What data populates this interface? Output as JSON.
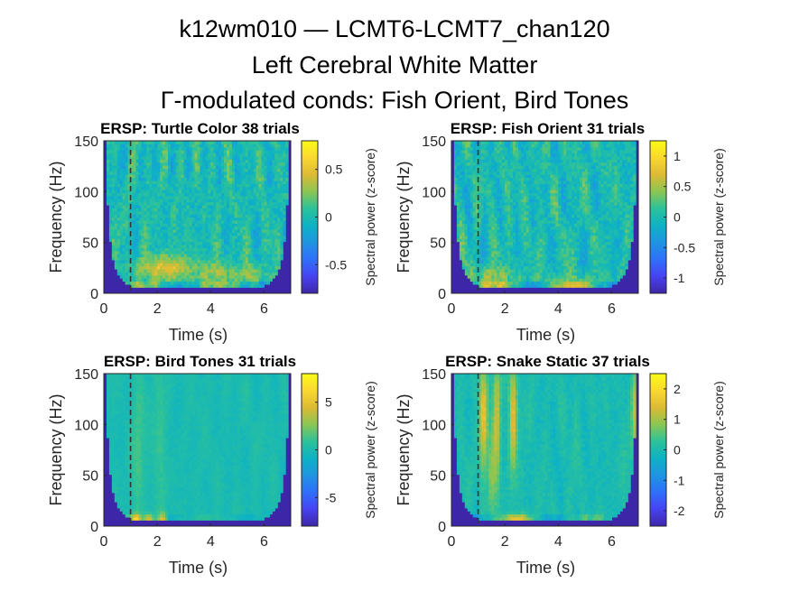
{
  "figure": {
    "title_lines": [
      "k12wm010 — LCMT6-LCMT7_chan120",
      "Left Cerebral White Matter",
      "Γ-modulated conds: Fish Orient, Bird Tones"
    ]
  },
  "colors": {
    "colormap": [
      "#3e26a8",
      "#4743f1",
      "#2f6ffb",
      "#1f95e2",
      "#0db2c5",
      "#2cc29a",
      "#8bc653",
      "#dcba34",
      "#fbd830",
      "#f9fb15"
    ],
    "masked_fill": "#3e26a8",
    "event_marker": "#333333",
    "axis": "#262626"
  },
  "chart_data": [
    {
      "type": "heatmap",
      "title": "ERSP: Turtle Color 38 trials",
      "xlabel": "Time (s)",
      "ylabel": "Frequency (Hz)",
      "xlim": [
        0,
        7
      ],
      "ylim": [
        0,
        150
      ],
      "xticks": [
        0,
        2,
        4,
        6
      ],
      "yticks": [
        0,
        50,
        100,
        150
      ],
      "event_time": 1,
      "colorbar": {
        "label": "Spectral power (z-score)",
        "range": [
          -0.8,
          0.8
        ],
        "ticks": [
          -0.5,
          0,
          0.5
        ],
        "tick_labels": [
          "-0.5",
          "0",
          "0.5"
        ]
      },
      "seed": 11,
      "texture_amp": 0.45,
      "hot_spots": [
        {
          "t": 2.3,
          "f": 25,
          "amp": 0.6,
          "st": 0.7,
          "sf": 9
        },
        {
          "t": 4.2,
          "f": 20,
          "amp": 0.35,
          "st": 0.5,
          "sf": 8
        },
        {
          "t": 5.5,
          "f": 18,
          "amp": 0.3,
          "st": 0.4,
          "sf": 8
        }
      ],
      "low_band": 0.45
    },
    {
      "type": "heatmap",
      "title": "ERSP: Fish Orient 31 trials",
      "xlabel": "Time (s)",
      "ylabel": "Frequency (Hz)",
      "xlim": [
        0,
        7
      ],
      "ylim": [
        0,
        150
      ],
      "xticks": [
        0,
        2,
        4,
        6
      ],
      "yticks": [
        0,
        50,
        100,
        150
      ],
      "event_time": 1,
      "colorbar": {
        "label": "Spectral power (z-score)",
        "range": [
          -1.25,
          1.25
        ],
        "ticks": [
          -1,
          -0.5,
          0,
          0.5,
          1
        ],
        "tick_labels": [
          "-1",
          "-0.5",
          "0",
          "0.5",
          "1"
        ]
      },
      "seed": 23,
      "texture_amp": 0.45,
      "hot_spots": [
        {
          "t": 1.5,
          "f": 15,
          "amp": 0.35,
          "st": 0.6,
          "sf": 8
        },
        {
          "t": 4.5,
          "f": 10,
          "amp": 0.3,
          "st": 0.8,
          "sf": 6
        }
      ],
      "low_band": 0.5
    },
    {
      "type": "heatmap",
      "title": "ERSP: Bird Tones 31 trials",
      "xlabel": "Time (s)",
      "ylabel": "Frequency (Hz)",
      "xlim": [
        0,
        7
      ],
      "ylim": [
        0,
        150
      ],
      "xticks": [
        0,
        2,
        4,
        6
      ],
      "yticks": [
        0,
        50,
        100,
        150
      ],
      "event_time": 1,
      "colorbar": {
        "label": "Spectral power (z-score)",
        "range": [
          -8,
          8
        ],
        "ticks": [
          -5,
          0,
          5
        ],
        "tick_labels": [
          "-5",
          "0",
          "5"
        ]
      },
      "seed": 37,
      "texture_amp": 0.12,
      "hot_spots": [
        {
          "t": 1.2,
          "f": 7,
          "amp": 0.7,
          "st": 0.12,
          "sf": 4
        },
        {
          "t": 1.7,
          "f": 7,
          "amp": 0.55,
          "st": 0.12,
          "sf": 4
        },
        {
          "t": 2.2,
          "f": 7,
          "amp": 0.6,
          "st": 0.12,
          "sf": 4
        },
        {
          "t": 1.3,
          "f": 80,
          "amp": 0.18,
          "st": 0.15,
          "sf": 60
        },
        {
          "t": 2.1,
          "f": 80,
          "amp": 0.15,
          "st": 0.15,
          "sf": 60
        }
      ],
      "low_band": 0.15
    },
    {
      "type": "heatmap",
      "title": "ERSP: Snake Static 37 trials",
      "xlabel": "Time (s)",
      "ylabel": "Frequency (Hz)",
      "xlim": [
        0,
        7
      ],
      "ylim": [
        0,
        150
      ],
      "xticks": [
        0,
        2,
        4,
        6
      ],
      "yticks": [
        0,
        50,
        100,
        150
      ],
      "event_time": 1,
      "colorbar": {
        "label": "Spectral power (z-score)",
        "range": [
          -2.5,
          2.5
        ],
        "ticks": [
          -2,
          -1,
          0,
          1,
          2
        ],
        "tick_labels": [
          "-2",
          "-1",
          "0",
          "1",
          "2"
        ]
      },
      "seed": 53,
      "texture_amp": 0.2,
      "hot_spots": [
        {
          "t": 1.2,
          "f": 110,
          "amp": 0.7,
          "st": 0.1,
          "sf": 35
        },
        {
          "t": 1.7,
          "f": 100,
          "amp": 0.55,
          "st": 0.1,
          "sf": 45
        },
        {
          "t": 2.3,
          "f": 110,
          "amp": 0.65,
          "st": 0.1,
          "sf": 35
        },
        {
          "t": 1.5,
          "f": 50,
          "amp": 0.35,
          "st": 0.1,
          "sf": 25
        },
        {
          "t": 2.5,
          "f": 6,
          "amp": 0.5,
          "st": 0.4,
          "sf": 4
        },
        {
          "t": 6.9,
          "f": 110,
          "amp": 0.5,
          "st": 0.1,
          "sf": 30
        }
      ],
      "low_band": 0.3
    }
  ]
}
